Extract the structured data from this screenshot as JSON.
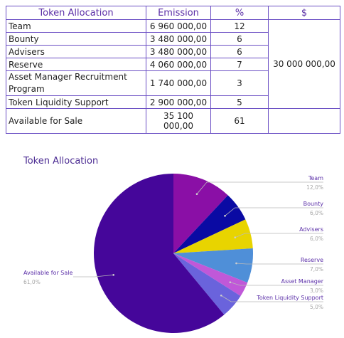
{
  "table": {
    "headers": [
      "Token Allocation",
      "Emission",
      "%",
      "$"
    ],
    "rows": [
      {
        "name": "Team",
        "emission": "6 960 000,00",
        "pct": "12"
      },
      {
        "name": "Bounty",
        "emission": "3 480 000,00",
        "pct": "6"
      },
      {
        "name": "Advisers",
        "emission": "3 480 000,00",
        "pct": "6"
      },
      {
        "name": "Reserve",
        "emission": "4 060 000,00",
        "pct": "7"
      },
      {
        "name": "Asset Manager Recruitment Program",
        "emission": "1 740 000,00",
        "pct": "3"
      },
      {
        "name": "Token Liquidity Support",
        "emission": "2 900 000,00",
        "pct": "5"
      },
      {
        "name": "Available for Sale",
        "emission": "35 100 000,00",
        "pct": "61"
      }
    ],
    "dollar_total": "30 000 000,00"
  },
  "chart_data": {
    "type": "pie",
    "title": "Token Allocation",
    "slices": [
      {
        "label": "Team",
        "value": 12.0,
        "pct_label": "12,0%",
        "color": "#8a0fa6"
      },
      {
        "label": "Bounty",
        "value": 6.0,
        "pct_label": "6,0%",
        "color": "#0a0aa3"
      },
      {
        "label": "Advisers",
        "value": 6.0,
        "pct_label": "6,0%",
        "color": "#e8d400"
      },
      {
        "label": "Reserve",
        "value": 7.0,
        "pct_label": "7,0%",
        "color": "#4f8fd8"
      },
      {
        "label": "Asset Manager",
        "value": 3.0,
        "pct_label": "3,0%",
        "color": "#c058d8"
      },
      {
        "label": "Token Liquidity Support",
        "value": 5.0,
        "pct_label": "5,0%",
        "color": "#6a63dc"
      },
      {
        "label": "Available for Sale",
        "value": 61.0,
        "pct_label": "61,0%",
        "color": "#45069a"
      }
    ],
    "legend": "callout labels beside slices"
  }
}
